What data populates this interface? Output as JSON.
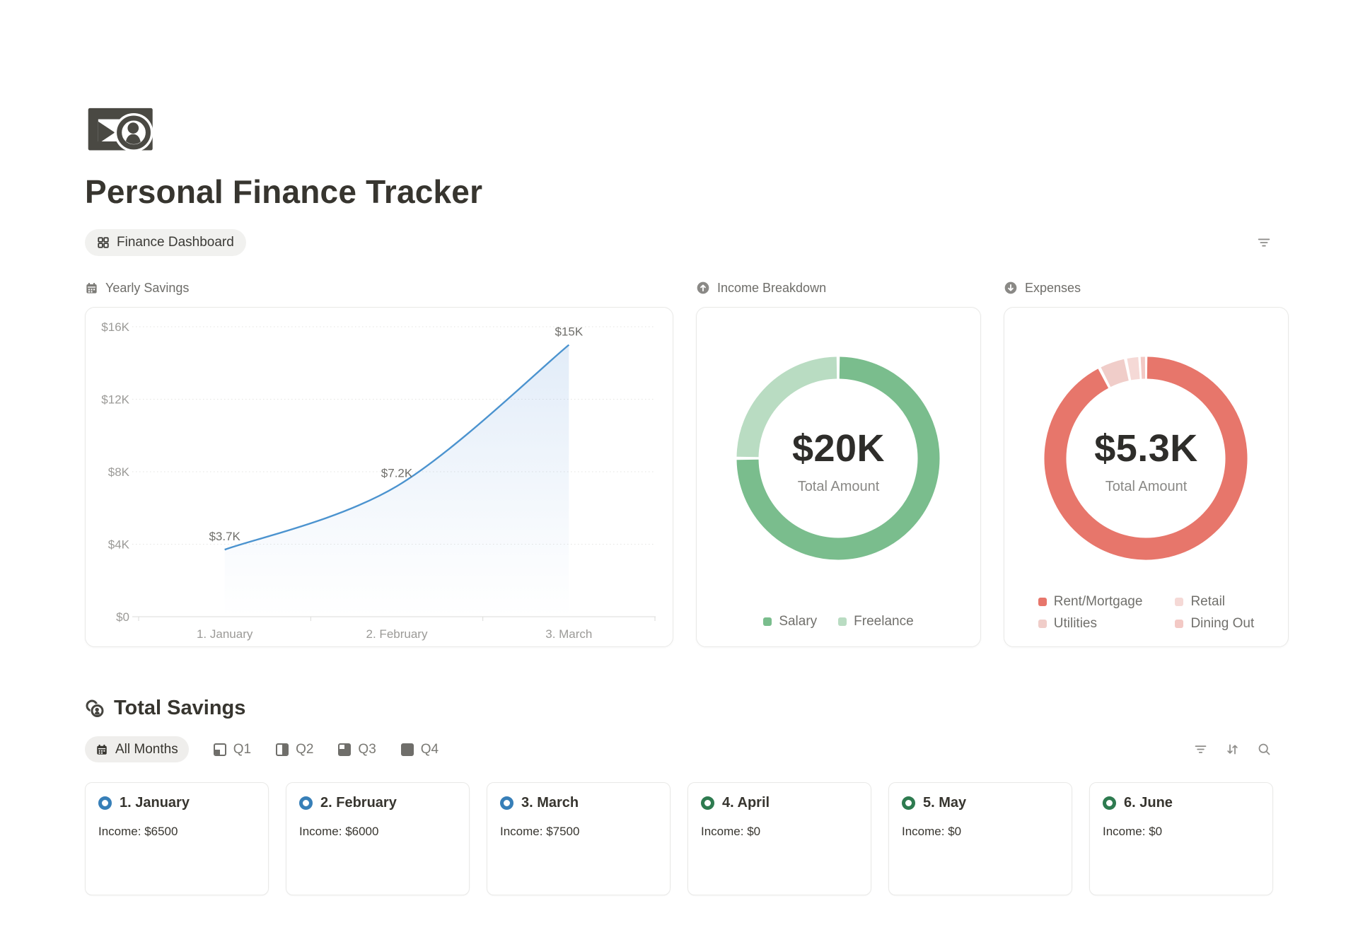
{
  "page": {
    "title": "Personal Finance Tracker",
    "icon": "money-banknote-coin-icon"
  },
  "toolbar": {
    "view_tab": "Finance Dashboard",
    "view_tab_icon": "grid-layout-icon",
    "right_icon": "filter-icon"
  },
  "sections": {
    "yearly_savings": "Yearly Savings",
    "yearly_savings_icon": "calendar-icon",
    "income_breakdown": "Income Breakdown",
    "income_breakdown_icon": "arrow-up-circle-icon",
    "expenses": "Expenses",
    "expenses_icon": "arrow-down-circle-icon",
    "total_savings": "Total Savings",
    "total_savings_icon": "coins-icon"
  },
  "filter_bar": {
    "active_label": "All Months",
    "active_icon": "calendar-icon",
    "quarter_tabs": [
      "Q1",
      "Q2",
      "Q3",
      "Q4"
    ],
    "right_icons": [
      "filter-icon",
      "sort-icon",
      "search-icon"
    ]
  },
  "colors": {
    "text_dark": "#37352f",
    "text_gray": "#71706c",
    "text_light": "#9b9a97",
    "line_blue": "#4b93cf",
    "salary_green": "#7abd8d",
    "freelance_green": "#b9dcc2",
    "expense_red": "#e7766b",
    "month_blue": "#377fb8",
    "month_green": "#2e7b50"
  },
  "month_cards": [
    {
      "title": "1. January",
      "income": "Income: $6500",
      "icon": "status-ring-icon",
      "icon_color": "#377fb8"
    },
    {
      "title": "2. February",
      "income": "Income: $6000",
      "icon": "status-ring-icon",
      "icon_color": "#377fb8"
    },
    {
      "title": "3. March",
      "income": "Income: $7500",
      "icon": "status-ring-icon",
      "icon_color": "#377fb8"
    },
    {
      "title": "4. April",
      "income": "Income: $0",
      "icon": "status-ring-icon",
      "icon_color": "#2e7b50"
    },
    {
      "title": "5. May",
      "income": "Income: $0",
      "icon": "status-ring-icon",
      "icon_color": "#2e7b50"
    },
    {
      "title": "6. June",
      "income": "Income: $0",
      "icon": "status-ring-icon",
      "icon_color": "#2e7b50"
    }
  ],
  "chart_data": [
    {
      "type": "area",
      "title": "Yearly Savings",
      "categories": [
        "1. January",
        "2. February",
        "3. March"
      ],
      "values": [
        3700,
        7200,
        15000
      ],
      "point_labels": [
        "$3.7K",
        "$7.2K",
        "$15K"
      ],
      "ylim": [
        0,
        16000
      ],
      "yticks": [
        0,
        4000,
        8000,
        12000,
        16000
      ],
      "ytick_labels": [
        "$0",
        "$4K",
        "$8K",
        "$12K",
        "$16K"
      ],
      "grid": "horizontal-dotted",
      "legend": "none",
      "line_color": "#4b93cf",
      "area_color": "#7aa9e0"
    },
    {
      "type": "donut",
      "title": "Income Breakdown",
      "center_value": "$20K",
      "center_label": "Total Amount",
      "segments": [
        {
          "label": "Salary",
          "value": 15000,
          "color": "#7abd8d"
        },
        {
          "label": "Freelance",
          "value": 5000,
          "color": "#b9dcc2"
        }
      ],
      "legend_position": "bottom",
      "legend_layout": "row",
      "legend_order": [
        "Salary",
        "Freelance"
      ]
    },
    {
      "type": "donut",
      "title": "Expenses",
      "center_value": "$5.3K",
      "center_label": "Total Amount",
      "segments": [
        {
          "label": "Rent/Mortgage",
          "value": 4900,
          "color": "#e7766b"
        },
        {
          "label": "Utilities",
          "value": 230,
          "color": "#f0cdc9"
        },
        {
          "label": "Retail",
          "value": 120,
          "color": "#f5d9d6"
        },
        {
          "label": "Dining Out",
          "value": 50,
          "color": "#f3c9c5"
        }
      ],
      "legend_position": "bottom",
      "legend_layout": "grid-2col",
      "legend_order": [
        "Rent/Mortgage",
        "Retail",
        "Utilities",
        "Dining Out"
      ]
    }
  ]
}
